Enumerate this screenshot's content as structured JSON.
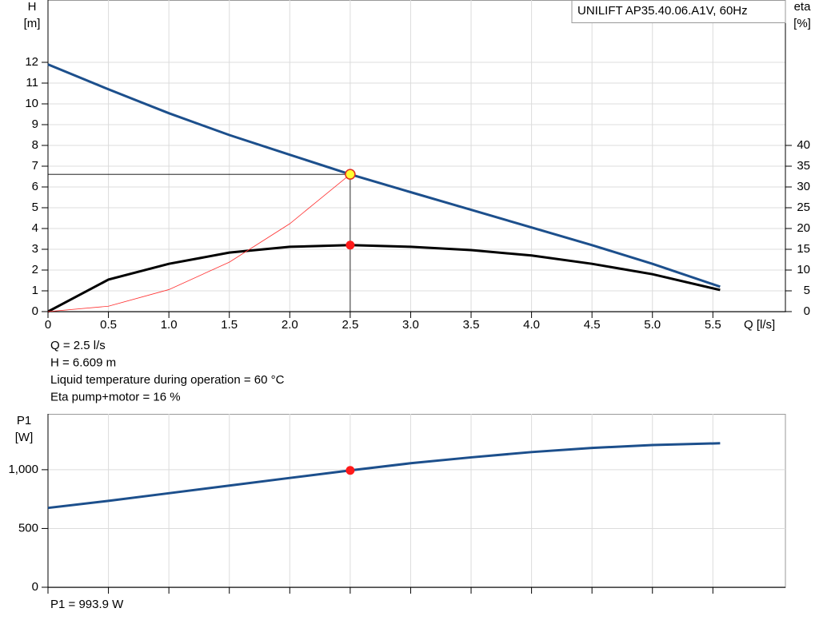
{
  "chart_data": [
    {
      "type": "line",
      "title": "UNILIFT AP35.40.06.A1V, 60Hz",
      "ylabel": "H",
      "ylabel_unit": "[m]",
      "y2label": "eta",
      "y2label_unit": "[%]",
      "xlabel": "Q [l/s]",
      "xlim": [
        0,
        6.1
      ],
      "xticks": [
        0,
        0.5,
        {
          "value": 1,
          "label": "1.0"
        },
        1.5,
        {
          "value": 2,
          "label": "2.0"
        },
        2.5,
        {
          "value": 3,
          "label": "3.0"
        },
        3.5,
        {
          "value": 4,
          "label": "4.0"
        },
        4.5,
        {
          "value": 5,
          "label": "5.0"
        },
        5.5
      ],
      "xtick_labels": true,
      "ylim": [
        0,
        15
      ],
      "yticks": [
        0,
        1,
        2,
        3,
        4,
        5,
        6,
        7,
        8,
        9,
        10,
        11,
        12
      ],
      "y2lim": [
        0,
        75
      ],
      "y2ticks": [
        0,
        5,
        10,
        15,
        20,
        25,
        30,
        35,
        40
      ],
      "grid": true,
      "series": [
        {
          "color": "#1c4f8c",
          "x": [
            0,
            0.5,
            1,
            1.5,
            2,
            2.5,
            3,
            3.5,
            4,
            4.5,
            5,
            5.56
          ],
          "values": [
            11.9,
            10.7,
            9.55,
            8.5,
            7.55,
            6.61,
            5.75,
            4.9,
            4.05,
            3.2,
            2.3,
            1.2
          ],
          "width": 3
        },
        {
          "color": "#000000",
          "axis": "y2",
          "x": [
            0,
            0.5,
            1,
            1.5,
            2,
            2.5,
            3,
            3.5,
            4,
            4.5,
            5,
            5.56
          ],
          "values": [
            0,
            7.7,
            11.5,
            14.2,
            15.6,
            16,
            15.6,
            14.8,
            13.5,
            11.5,
            9,
            5.2
          ],
          "width": 3
        },
        {
          "color": "#ff3030",
          "x": [
            0,
            0.5,
            1,
            1.5,
            2,
            2.5
          ],
          "values": [
            0,
            0.26,
            1.06,
            2.38,
            4.23,
            6.61
          ],
          "width": 0.8
        }
      ],
      "operating_point": {
        "x": 2.5,
        "y": 6.609,
        "y2": 16
      },
      "annotations": [
        "Q = 2.5 l/s",
        "H = 6.609 m",
        "Liquid temperature during operation = 60 °C",
        "Eta pump+motor = 16 %"
      ]
    },
    {
      "type": "line",
      "ylabel": "P1",
      "ylabel_unit": "[W]",
      "xlim": [
        0,
        6.1
      ],
      "xticks": [
        0,
        0.5,
        1,
        1.5,
        2,
        2.5,
        3,
        3.5,
        4,
        4.5,
        5,
        5.5
      ],
      "xtick_labels": false,
      "ylim": [
        0,
        1475
      ],
      "yticks": [
        0,
        500,
        {
          "value": 1000,
          "label": "1,000"
        }
      ],
      "grid": true,
      "series": [
        {
          "color": "#1c4f8c",
          "x": [
            0,
            0.5,
            1,
            1.5,
            2,
            2.5,
            3,
            3.5,
            4,
            4.5,
            5,
            5.56
          ],
          "values": [
            675,
            735,
            800,
            865,
            930,
            993.9,
            1055,
            1105,
            1150,
            1185,
            1210,
            1225
          ],
          "width": 3
        }
      ],
      "operating_point": {
        "x": 2.5,
        "y": 993.9
      },
      "annotations": [
        "P1 = 993.9 W"
      ]
    }
  ]
}
